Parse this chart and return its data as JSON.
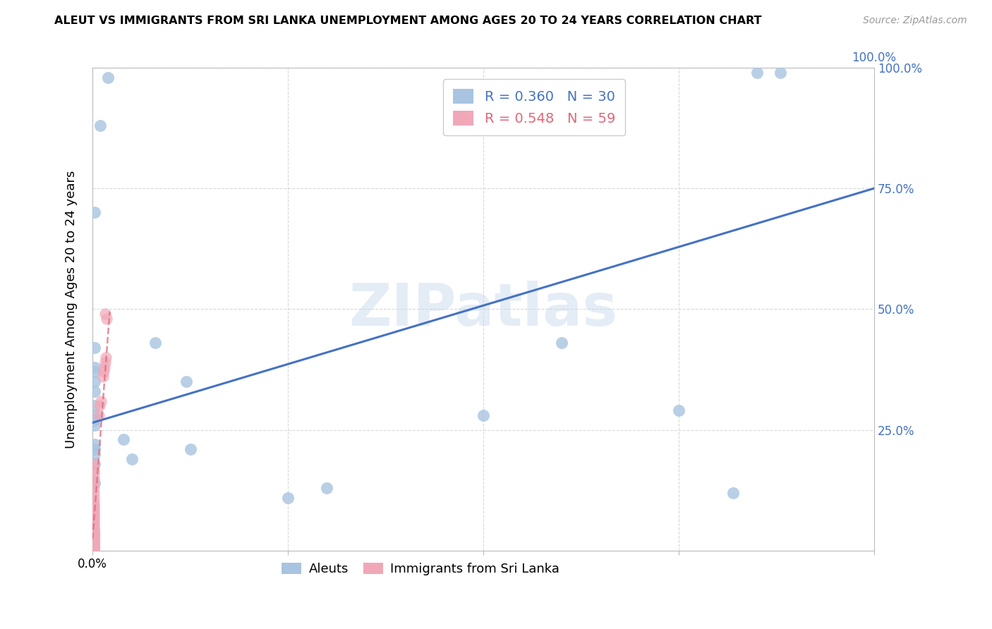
{
  "title": "ALEUT VS IMMIGRANTS FROM SRI LANKA UNEMPLOYMENT AMONG AGES 20 TO 24 YEARS CORRELATION CHART",
  "source": "Source: ZipAtlas.com",
  "ylabel": "Unemployment Among Ages 20 to 24 years",
  "xlim": [
    0,
    1.0
  ],
  "ylim": [
    0,
    1.0
  ],
  "legend_r1": "R = 0.360",
  "legend_n1": "N = 30",
  "legend_r2": "R = 0.548",
  "legend_n2": "N = 59",
  "watermark": "ZIPatlas",
  "aleuts_color": "#a8c4e0",
  "srilanka_color": "#f0a8b8",
  "trend_blue_color": "#4472c4",
  "trend_pink_color": "#e06878",
  "aleuts_x": [
    0.01,
    0.02,
    0.003,
    0.003,
    0.003,
    0.003,
    0.003,
    0.003,
    0.003,
    0.003,
    0.003,
    0.003,
    0.003,
    0.003,
    0.003,
    0.003,
    0.003,
    0.04,
    0.05,
    0.08,
    0.12,
    0.125,
    0.25,
    0.3,
    0.5,
    0.6,
    0.75,
    0.82,
    0.85,
    0.88
  ],
  "aleuts_y": [
    0.88,
    0.98,
    0.7,
    0.42,
    0.38,
    0.37,
    0.35,
    0.33,
    0.3,
    0.28,
    0.27,
    0.26,
    0.22,
    0.21,
    0.2,
    0.18,
    0.14,
    0.23,
    0.19,
    0.43,
    0.35,
    0.21,
    0.11,
    0.13,
    0.28,
    0.43,
    0.29,
    0.12,
    0.99,
    0.99
  ],
  "srilanka_x": [
    0.002,
    0.002,
    0.002,
    0.002,
    0.002,
    0.002,
    0.002,
    0.002,
    0.002,
    0.002,
    0.002,
    0.002,
    0.002,
    0.002,
    0.002,
    0.002,
    0.002,
    0.002,
    0.002,
    0.002,
    0.002,
    0.002,
    0.002,
    0.002,
    0.002,
    0.002,
    0.002,
    0.002,
    0.002,
    0.002,
    0.002,
    0.002,
    0.002,
    0.002,
    0.002,
    0.002,
    0.002,
    0.002,
    0.002,
    0.002,
    0.002,
    0.002,
    0.002,
    0.002,
    0.002,
    0.002,
    0.002,
    0.002,
    0.002,
    0.008,
    0.009,
    0.011,
    0.013,
    0.014,
    0.015,
    0.016,
    0.017,
    0.018,
    0.016
  ],
  "srilanka_y": [
    0.003,
    0.004,
    0.005,
    0.006,
    0.007,
    0.008,
    0.009,
    0.01,
    0.011,
    0.012,
    0.013,
    0.015,
    0.016,
    0.018,
    0.019,
    0.02,
    0.021,
    0.022,
    0.025,
    0.026,
    0.028,
    0.03,
    0.032,
    0.034,
    0.035,
    0.036,
    0.038,
    0.04,
    0.042,
    0.045,
    0.05,
    0.055,
    0.06,
    0.065,
    0.07,
    0.075,
    0.08,
    0.085,
    0.09,
    0.095,
    0.1,
    0.11,
    0.12,
    0.13,
    0.14,
    0.15,
    0.16,
    0.17,
    0.18,
    0.28,
    0.3,
    0.31,
    0.36,
    0.37,
    0.38,
    0.39,
    0.4,
    0.48,
    0.49
  ],
  "blue_trend_x": [
    0.0,
    1.0
  ],
  "blue_trend_y": [
    0.265,
    0.75
  ],
  "pink_trend_x": [
    0.0,
    0.022
  ],
  "pink_trend_y": [
    0.024,
    0.495
  ]
}
